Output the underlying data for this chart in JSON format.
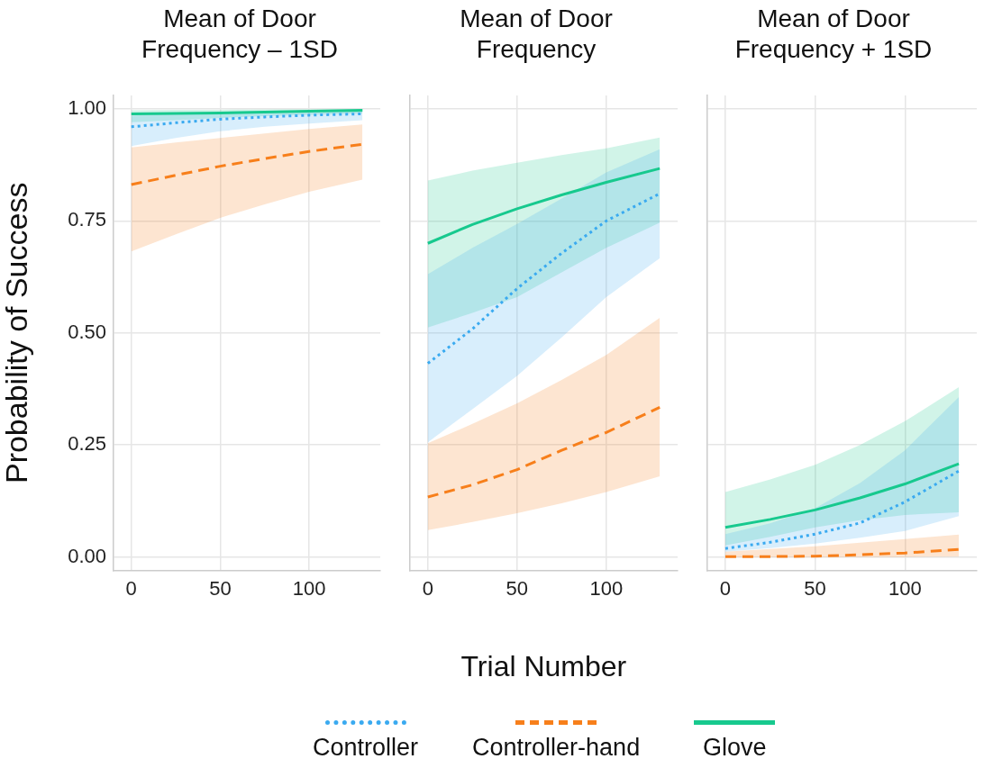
{
  "chart_data": [
    {
      "type": "line",
      "title": "Mean of Door Frequency – 1SD",
      "ylabel": "Probability of Success",
      "x": [
        0,
        25,
        50,
        75,
        100,
        130
      ],
      "xlim": [
        -10,
        140
      ],
      "ylim": [
        -0.03,
        1.03
      ],
      "xticks": [
        0,
        50,
        100
      ],
      "yticks": [
        {
          "value": 0,
          "label": "0.00"
        },
        {
          "value": 0.25,
          "label": "0.25"
        },
        {
          "value": 0.5,
          "label": "0.50"
        },
        {
          "value": 0.75,
          "label": "0.75"
        },
        {
          "value": 1,
          "label": "1.00"
        }
      ],
      "grid": true,
      "marker": "none",
      "series": [
        {
          "color": "#3aaaf0",
          "line_style": "dotted",
          "values": [
            0.96,
            0.969,
            0.977,
            0.982,
            0.986,
            0.989
          ],
          "lower": [
            0.917,
            0.935,
            0.95,
            0.96,
            0.967,
            0.975
          ],
          "upper": [
            0.985,
            0.99,
            0.993,
            0.995,
            0.996,
            0.997
          ]
        },
        {
          "color": "#f77f1b",
          "line_style": "dashed",
          "values": [
            0.831,
            0.852,
            0.872,
            0.889,
            0.905,
            0.921
          ],
          "lower": [
            0.682,
            0.72,
            0.757,
            0.787,
            0.815,
            0.842
          ],
          "upper": [
            0.914,
            0.925,
            0.935,
            0.945,
            0.955,
            0.965
          ]
        },
        {
          "color": "#17c98e",
          "line_style": "solid",
          "values": [
            0.989,
            0.99,
            0.991,
            0.993,
            0.995,
            0.997
          ],
          "lower": [
            0.97,
            0.975,
            0.98,
            0.984,
            0.987,
            0.99
          ],
          "upper": [
            0.997,
            0.998,
            0.998,
            0.999,
            0.999,
            0.999
          ]
        }
      ]
    },
    {
      "type": "line",
      "title": "Mean of Door Frequency",
      "xlabel": "Trial Number",
      "legend": "bottom",
      "tick_labels": "x",
      "x": [
        0,
        25,
        50,
        75,
        100,
        130
      ],
      "xlim": [
        -10,
        140
      ],
      "ylim": [
        -0.03,
        1.03
      ],
      "xticks": [
        0,
        50,
        100
      ],
      "yticks": [
        {
          "value": 0,
          "label": null
        },
        {
          "value": 0.25,
          "label": null
        },
        {
          "value": 0.5,
          "label": null
        },
        {
          "value": 0.75,
          "label": null
        },
        {
          "value": 1,
          "label": null
        }
      ],
      "grid": true,
      "marker": "none",
      "series": [
        {
          "name": "Controller",
          "color": "#3aaaf0",
          "line_style": "dotted",
          "values": [
            0.432,
            0.509,
            0.599,
            0.678,
            0.75,
            0.811
          ],
          "lower": [
            0.256,
            0.33,
            0.404,
            0.49,
            0.58,
            0.667
          ],
          "upper": [
            0.631,
            0.69,
            0.743,
            0.8,
            0.858,
            0.91
          ]
        },
        {
          "name": "Controller-hand",
          "color": "#f77f1b",
          "line_style": "dashed",
          "values": [
            0.134,
            0.161,
            0.195,
            0.238,
            0.278,
            0.334
          ],
          "lower": [
            0.06,
            0.078,
            0.098,
            0.12,
            0.145,
            0.18
          ],
          "upper": [
            0.254,
            0.297,
            0.343,
            0.395,
            0.451,
            0.534
          ]
        },
        {
          "name": "Glove",
          "color": "#17c98e",
          "line_style": "solid",
          "values": [
            0.7,
            0.742,
            0.777,
            0.808,
            0.836,
            0.867
          ],
          "lower": [
            0.512,
            0.545,
            0.58,
            0.635,
            0.69,
            0.746
          ],
          "upper": [
            0.84,
            0.862,
            0.88,
            0.897,
            0.912,
            0.936
          ]
        }
      ]
    },
    {
      "type": "line",
      "title": "Mean of Door Frequency + 1SD",
      "tick_labels": "x",
      "x": [
        0,
        25,
        50,
        75,
        100,
        130
      ],
      "xlim": [
        -10,
        140
      ],
      "ylim": [
        -0.03,
        1.03
      ],
      "xticks": [
        0,
        50,
        100
      ],
      "yticks": [
        {
          "value": 0,
          "label": null
        },
        {
          "value": 0.25,
          "label": null
        },
        {
          "value": 0.5,
          "label": null
        },
        {
          "value": 0.75,
          "label": null
        },
        {
          "value": 1,
          "label": null
        }
      ],
      "grid": true,
      "marker": "none",
      "series": [
        {
          "color": "#3aaaf0",
          "line_style": "dotted",
          "values": [
            0.019,
            0.033,
            0.051,
            0.076,
            0.123,
            0.192
          ],
          "lower": [
            0.012,
            0.02,
            0.03,
            0.043,
            0.058,
            0.091
          ],
          "upper": [
            0.051,
            0.075,
            0.109,
            0.165,
            0.238,
            0.357
          ]
        },
        {
          "color": "#f77f1b",
          "line_style": "dashed",
          "values": [
            0.001,
            0.001,
            0.002,
            0.005,
            0.009,
            0.017
          ],
          "lower": [
            0,
            0,
            0,
            0,
            0,
            0.001
          ],
          "upper": [
            0.012,
            0.018,
            0.024,
            0.032,
            0.04,
            0.05
          ]
        },
        {
          "color": "#17c98e",
          "line_style": "solid",
          "values": [
            0.066,
            0.084,
            0.105,
            0.132,
            0.163,
            0.208
          ],
          "lower": [
            0.026,
            0.045,
            0.066,
            0.082,
            0.094,
            0.1
          ],
          "upper": [
            0.145,
            0.173,
            0.206,
            0.25,
            0.303,
            0.379
          ]
        }
      ]
    }
  ]
}
